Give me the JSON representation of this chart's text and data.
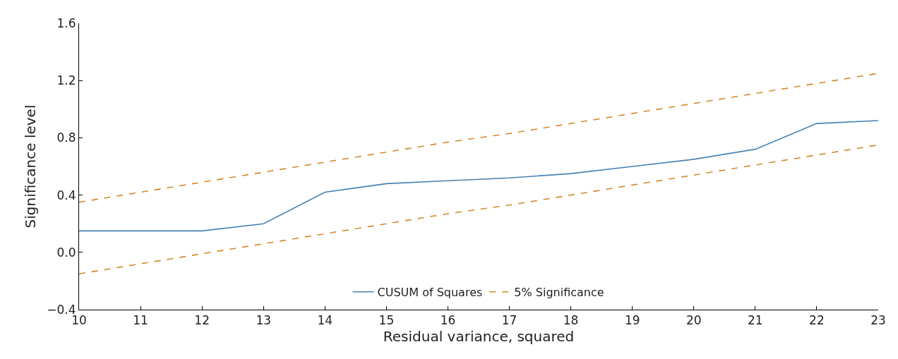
{
  "chart_data": {
    "type": "line",
    "xlabel": "Residual variance, squared",
    "ylabel": "Significance level",
    "x": [
      10,
      11,
      12,
      13,
      14,
      15,
      16,
      17,
      18,
      19,
      20,
      21,
      22,
      23
    ],
    "series": [
      {
        "name": "CUSUM of Squares",
        "color": "#4682b4",
        "line_style": "solid",
        "values": [
          0.15,
          0.15,
          0.15,
          0.2,
          0.42,
          0.48,
          0.5,
          0.52,
          0.55,
          0.6,
          0.65,
          0.72,
          0.9,
          0.92
        ]
      },
      {
        "name": "5% Significance",
        "color": "#d2872a",
        "line_style": "dashed",
        "values": [
          0.35,
          0.42,
          0.49,
          0.56,
          0.63,
          0.7,
          0.77,
          0.83,
          0.9,
          0.97,
          1.04,
          1.11,
          1.18,
          1.25
        ]
      },
      {
        "color": "#d2872a",
        "line_style": "dashed",
        "values": [
          -0.15,
          -0.08,
          -0.01,
          0.06,
          0.13,
          0.2,
          0.27,
          0.33,
          0.4,
          0.47,
          0.54,
          0.61,
          0.68,
          0.75
        ]
      }
    ],
    "xlim": [
      10,
      23
    ],
    "xticks": [
      10,
      11,
      12,
      13,
      14,
      15,
      16,
      17,
      18,
      19,
      20,
      21,
      22,
      23
    ],
    "ylim": [
      -0.4,
      1.6
    ],
    "yticks": [
      {
        "value": -0.4,
        "label": "−0.4"
      },
      {
        "value": 0,
        "label": "0.0"
      },
      {
        "value": 0.4,
        "label": "0.4"
      },
      {
        "value": 0.8,
        "label": "0.8"
      },
      {
        "value": 1.2,
        "label": "1.2"
      },
      {
        "value": 1.6,
        "label": "1.6"
      }
    ],
    "grid": false,
    "legend": "bottom",
    "marker": "none"
  }
}
